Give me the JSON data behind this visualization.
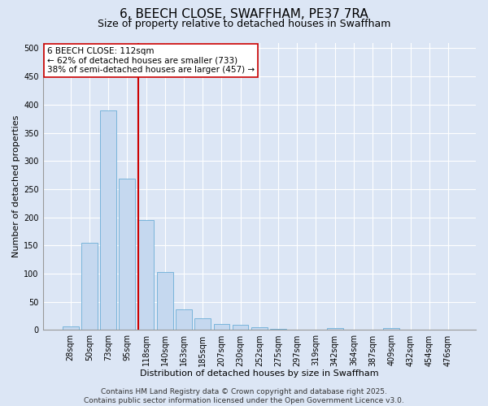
{
  "title": "6, BEECH CLOSE, SWAFFHAM, PE37 7RA",
  "subtitle": "Size of property relative to detached houses in Swaffham",
  "xlabel": "Distribution of detached houses by size in Swaffham",
  "ylabel": "Number of detached properties",
  "bar_color": "#c5d8ef",
  "bar_edge_color": "#6baed6",
  "background_color": "#dce6f5",
  "grid_color": "#ffffff",
  "categories": [
    "28sqm",
    "50sqm",
    "73sqm",
    "95sqm",
    "118sqm",
    "140sqm",
    "163sqm",
    "185sqm",
    "207sqm",
    "230sqm",
    "252sqm",
    "275sqm",
    "297sqm",
    "319sqm",
    "342sqm",
    "364sqm",
    "387sqm",
    "409sqm",
    "432sqm",
    "454sqm",
    "476sqm"
  ],
  "values": [
    7,
    155,
    390,
    268,
    195,
    103,
    36,
    21,
    11,
    9,
    5,
    2,
    0,
    0,
    3,
    0,
    0,
    3,
    0,
    0,
    0
  ],
  "ylim": [
    0,
    510
  ],
  "yticks": [
    0,
    50,
    100,
    150,
    200,
    250,
    300,
    350,
    400,
    450,
    500
  ],
  "property_line_color": "#cc0000",
  "annotation_text": "6 BEECH CLOSE: 112sqm\n← 62% of detached houses are smaller (733)\n38% of semi-detached houses are larger (457) →",
  "annotation_box_color": "#ffffff",
  "annotation_box_edge": "#cc0000",
  "footer_text": "Contains HM Land Registry data © Crown copyright and database right 2025.\nContains public sector information licensed under the Open Government Licence v3.0.",
  "title_fontsize": 11,
  "subtitle_fontsize": 9,
  "annotation_fontsize": 7.5,
  "footer_fontsize": 6.5,
  "axis_label_fontsize": 8,
  "tick_fontsize": 7
}
